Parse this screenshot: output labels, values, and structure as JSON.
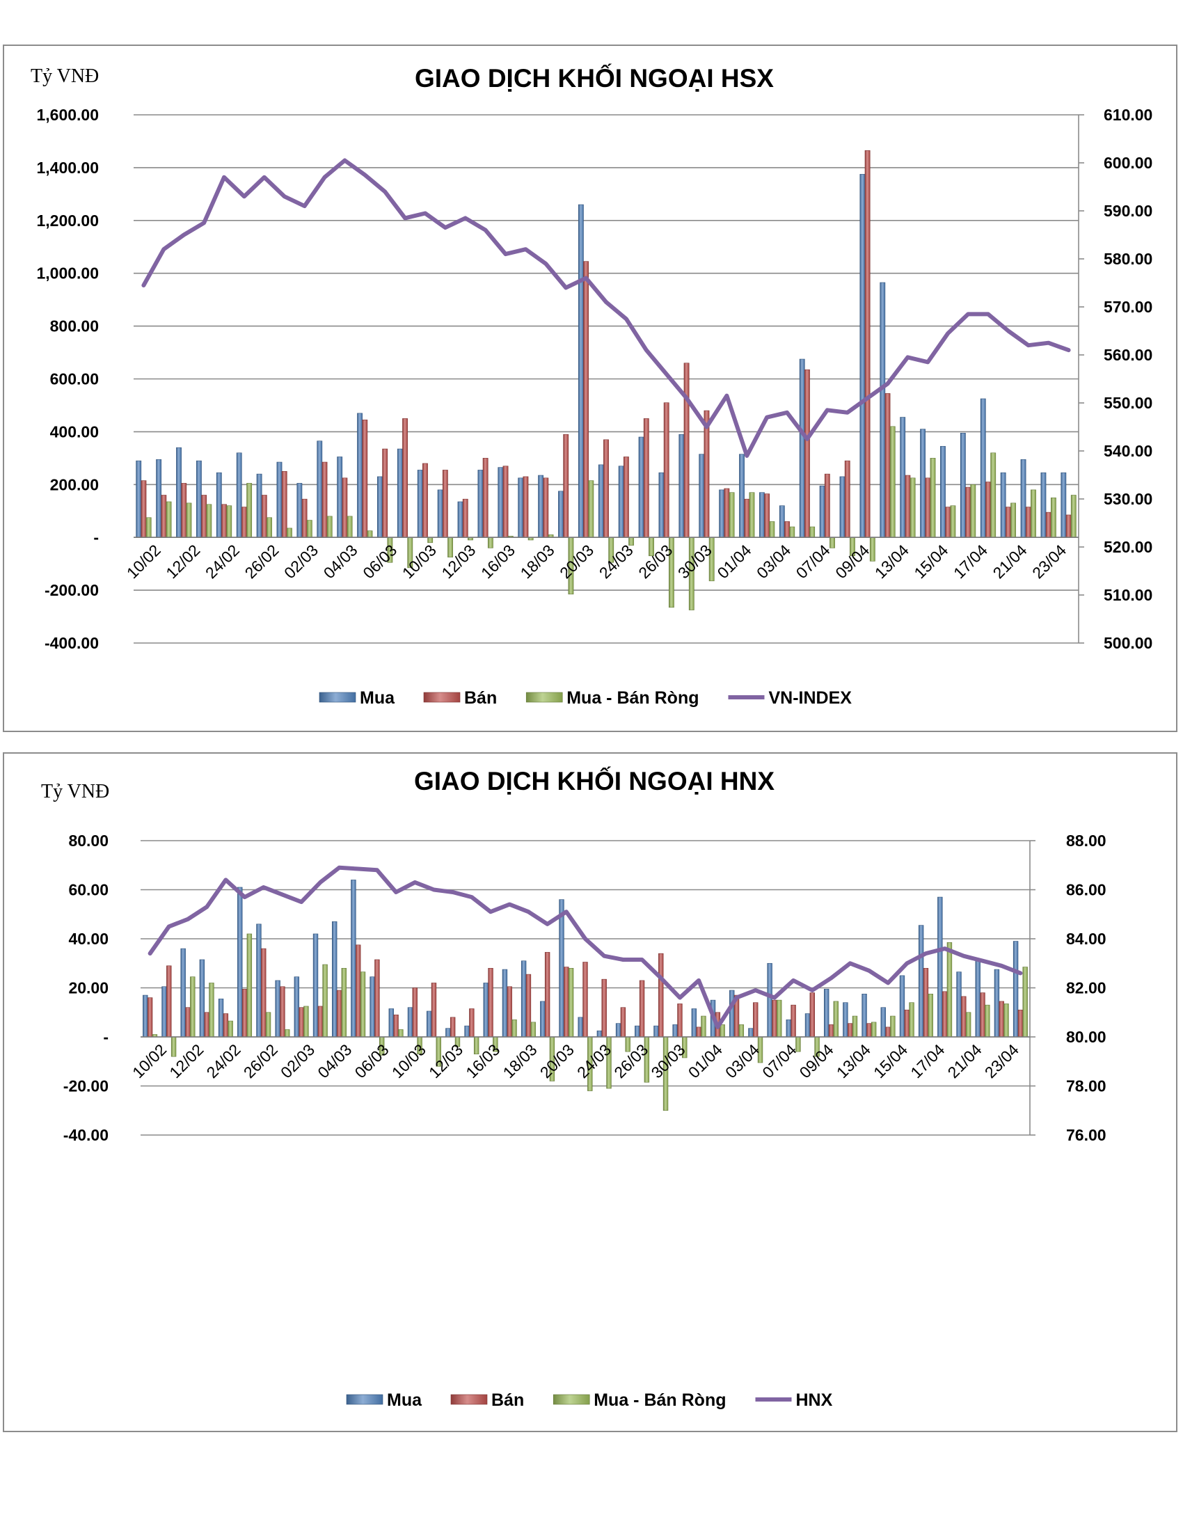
{
  "chart_data": [
    {
      "type": "bar",
      "title": "GIAO DỊCH KHỐI NGOẠI HSX",
      "ylabel": "Tỷ VNĐ",
      "ylim": [
        -400,
        1600
      ],
      "y_ticks": [
        "1,600.00",
        "1,400.00",
        "1,200.00",
        "1,000.00",
        "800.00",
        "600.00",
        "400.00",
        "200.00",
        "-",
        "-200.00",
        "-400.00"
      ],
      "y2lim": [
        500,
        610
      ],
      "y2_ticks": [
        "610.00",
        "600.00",
        "590.00",
        "580.00",
        "570.00",
        "560.00",
        "550.00",
        "540.00",
        "530.00",
        "520.00",
        "510.00",
        "500.00"
      ],
      "x_tick_labels": [
        "10/02",
        "12/02",
        "24/02",
        "26/02",
        "02/03",
        "04/03",
        "06/03",
        "10/03",
        "12/03",
        "16/03",
        "18/03",
        "20/03",
        "24/03",
        "26/03",
        "30/03",
        "01/04",
        "03/04",
        "07/04",
        "09/04",
        "13/04",
        "15/04",
        "17/04",
        "21/04",
        "23/04"
      ],
      "grid": true,
      "legend_position": "bottom",
      "series": [
        {
          "name": "Mua",
          "color": "#4f81bd",
          "values": [
            290,
            295,
            340,
            290,
            245,
            320,
            240,
            285,
            205,
            365,
            305,
            470,
            230,
            335,
            255,
            180,
            135,
            255,
            265,
            225,
            235,
            175,
            1260,
            275,
            270,
            380,
            245,
            390,
            315,
            180,
            315,
            170,
            120,
            675,
            195,
            230,
            1375,
            965,
            455,
            410,
            345,
            395,
            525,
            245,
            295,
            245,
            245
          ]
        },
        {
          "name": "Bán",
          "color": "#c0504d",
          "values": [
            215,
            160,
            205,
            160,
            125,
            115,
            160,
            250,
            145,
            285,
            225,
            445,
            335,
            450,
            280,
            255,
            145,
            300,
            270,
            230,
            225,
            390,
            1045,
            370,
            305,
            450,
            510,
            660,
            480,
            185,
            145,
            165,
            60,
            635,
            240,
            290,
            1465,
            545,
            235,
            225,
            115,
            190,
            210,
            115,
            115,
            95,
            85
          ]
        },
        {
          "name": "Mua - Bán Ròng",
          "color": "#9bbb59",
          "values": [
            75,
            135,
            130,
            125,
            120,
            205,
            75,
            35,
            65,
            80,
            80,
            25,
            -95,
            -115,
            -20,
            -75,
            -10,
            -40,
            5,
            -10,
            10,
            -215,
            215,
            -95,
            -30,
            -70,
            -265,
            -275,
            -165,
            170,
            170,
            60,
            40,
            40,
            -40,
            -70,
            -90,
            420,
            225,
            300,
            120,
            200,
            320,
            130,
            180,
            150,
            160
          ]
        },
        {
          "name": "VN-INDEX",
          "type": "line",
          "color": "#8064a2",
          "axis": "secondary",
          "values": [
            574.5,
            582,
            585,
            587.5,
            597,
            593,
            597,
            593,
            591,
            597,
            600.5,
            597.5,
            594,
            588.5,
            589.5,
            586.5,
            588.5,
            586,
            581,
            582,
            579,
            574,
            576,
            571,
            567.5,
            561,
            556,
            551,
            545,
            551.5,
            539,
            547,
            548,
            542.5,
            548.5,
            548,
            551,
            554,
            559.5,
            558.5,
            564.5,
            568.5,
            568.5,
            565,
            562,
            562.5,
            561
          ]
        }
      ]
    },
    {
      "type": "bar",
      "title": "GIAO DỊCH KHỐI NGOẠI HNX",
      "ylabel": "Tỷ VNĐ",
      "ylim": [
        -40,
        80
      ],
      "y_ticks": [
        "80.00",
        "60.00",
        "40.00",
        "20.00",
        "-",
        "-20.00",
        "-40.00"
      ],
      "y2lim": [
        76,
        88
      ],
      "y2_ticks": [
        "88.00",
        "86.00",
        "84.00",
        "82.00",
        "80.00",
        "78.00",
        "76.00"
      ],
      "x_tick_labels": [
        "10/02",
        "12/02",
        "24/02",
        "26/02",
        "02/03",
        "04/03",
        "06/03",
        "10/03",
        "12/03",
        "16/03",
        "18/03",
        "20/03",
        "24/03",
        "26/03",
        "30/03",
        "01/04",
        "03/04",
        "07/04",
        "09/04",
        "13/04",
        "15/04",
        "17/04",
        "21/04",
        "23/04"
      ],
      "grid": true,
      "legend_position": "bottom",
      "series": [
        {
          "name": "Mua",
          "color": "#4f81bd",
          "values": [
            17,
            20.5,
            36,
            31.5,
            15.5,
            61,
            46,
            23,
            24.5,
            42,
            47,
            64,
            24.5,
            11.5,
            12,
            10.5,
            3.5,
            4.5,
            22,
            27.5,
            31,
            14.5,
            56,
            8,
            2.5,
            5.5,
            4.5,
            4.5,
            5,
            11.5,
            15,
            19,
            3.5,
            30,
            7,
            9.5,
            19.5,
            14,
            17.5,
            12,
            25,
            45.5,
            57,
            26.5,
            31,
            27.5,
            39
          ]
        },
        {
          "name": "Bán",
          "color": "#c0504d",
          "values": [
            16,
            29,
            12,
            10,
            9.5,
            19.5,
            36,
            20.5,
            12,
            12.5,
            19,
            37.5,
            31.5,
            9,
            20,
            22,
            8,
            11.5,
            28,
            20.5,
            25.5,
            34.5,
            28.5,
            30.5,
            23.5,
            12,
            23,
            34,
            13.5,
            4,
            10,
            17,
            14,
            15,
            13,
            18,
            5,
            5.5,
            5.5,
            4,
            11,
            28,
            18.5,
            16.5,
            18,
            14.5,
            11
          ]
        },
        {
          "name": "Mua - Bán Ròng",
          "color": "#9bbb59",
          "values": [
            1,
            -8,
            24.5,
            22,
            6.5,
            42,
            10,
            3,
            12.5,
            29.5,
            28,
            26.5,
            -7.5,
            3,
            -7,
            -12,
            -4,
            -7,
            -6,
            7,
            6,
            -18,
            28,
            -22,
            -21,
            -6,
            -18.5,
            -30,
            -8.5,
            8.5,
            5,
            5,
            -10.5,
            15,
            -6,
            -8,
            14.5,
            8.5,
            6,
            8.5,
            14,
            17.5,
            38.5,
            10,
            13,
            13.5,
            28.5
          ]
        },
        {
          "name": "HNX",
          "type": "line",
          "color": "#8064a2",
          "axis": "secondary",
          "values": [
            83.4,
            84.5,
            84.8,
            85.3,
            86.4,
            85.7,
            86.1,
            85.8,
            85.5,
            86.3,
            86.9,
            86.85,
            86.8,
            85.9,
            86.3,
            86.0,
            85.9,
            85.7,
            85.1,
            85.4,
            85.1,
            84.6,
            85.1,
            84.0,
            83.3,
            83.15,
            83.15,
            82.4,
            81.6,
            82.3,
            80.4,
            81.6,
            81.9,
            81.6,
            82.3,
            81.9,
            82.4,
            83.0,
            82.7,
            82.2,
            83.0,
            83.4,
            83.6,
            83.3,
            83.1,
            82.9,
            82.6
          ]
        }
      ]
    }
  ]
}
